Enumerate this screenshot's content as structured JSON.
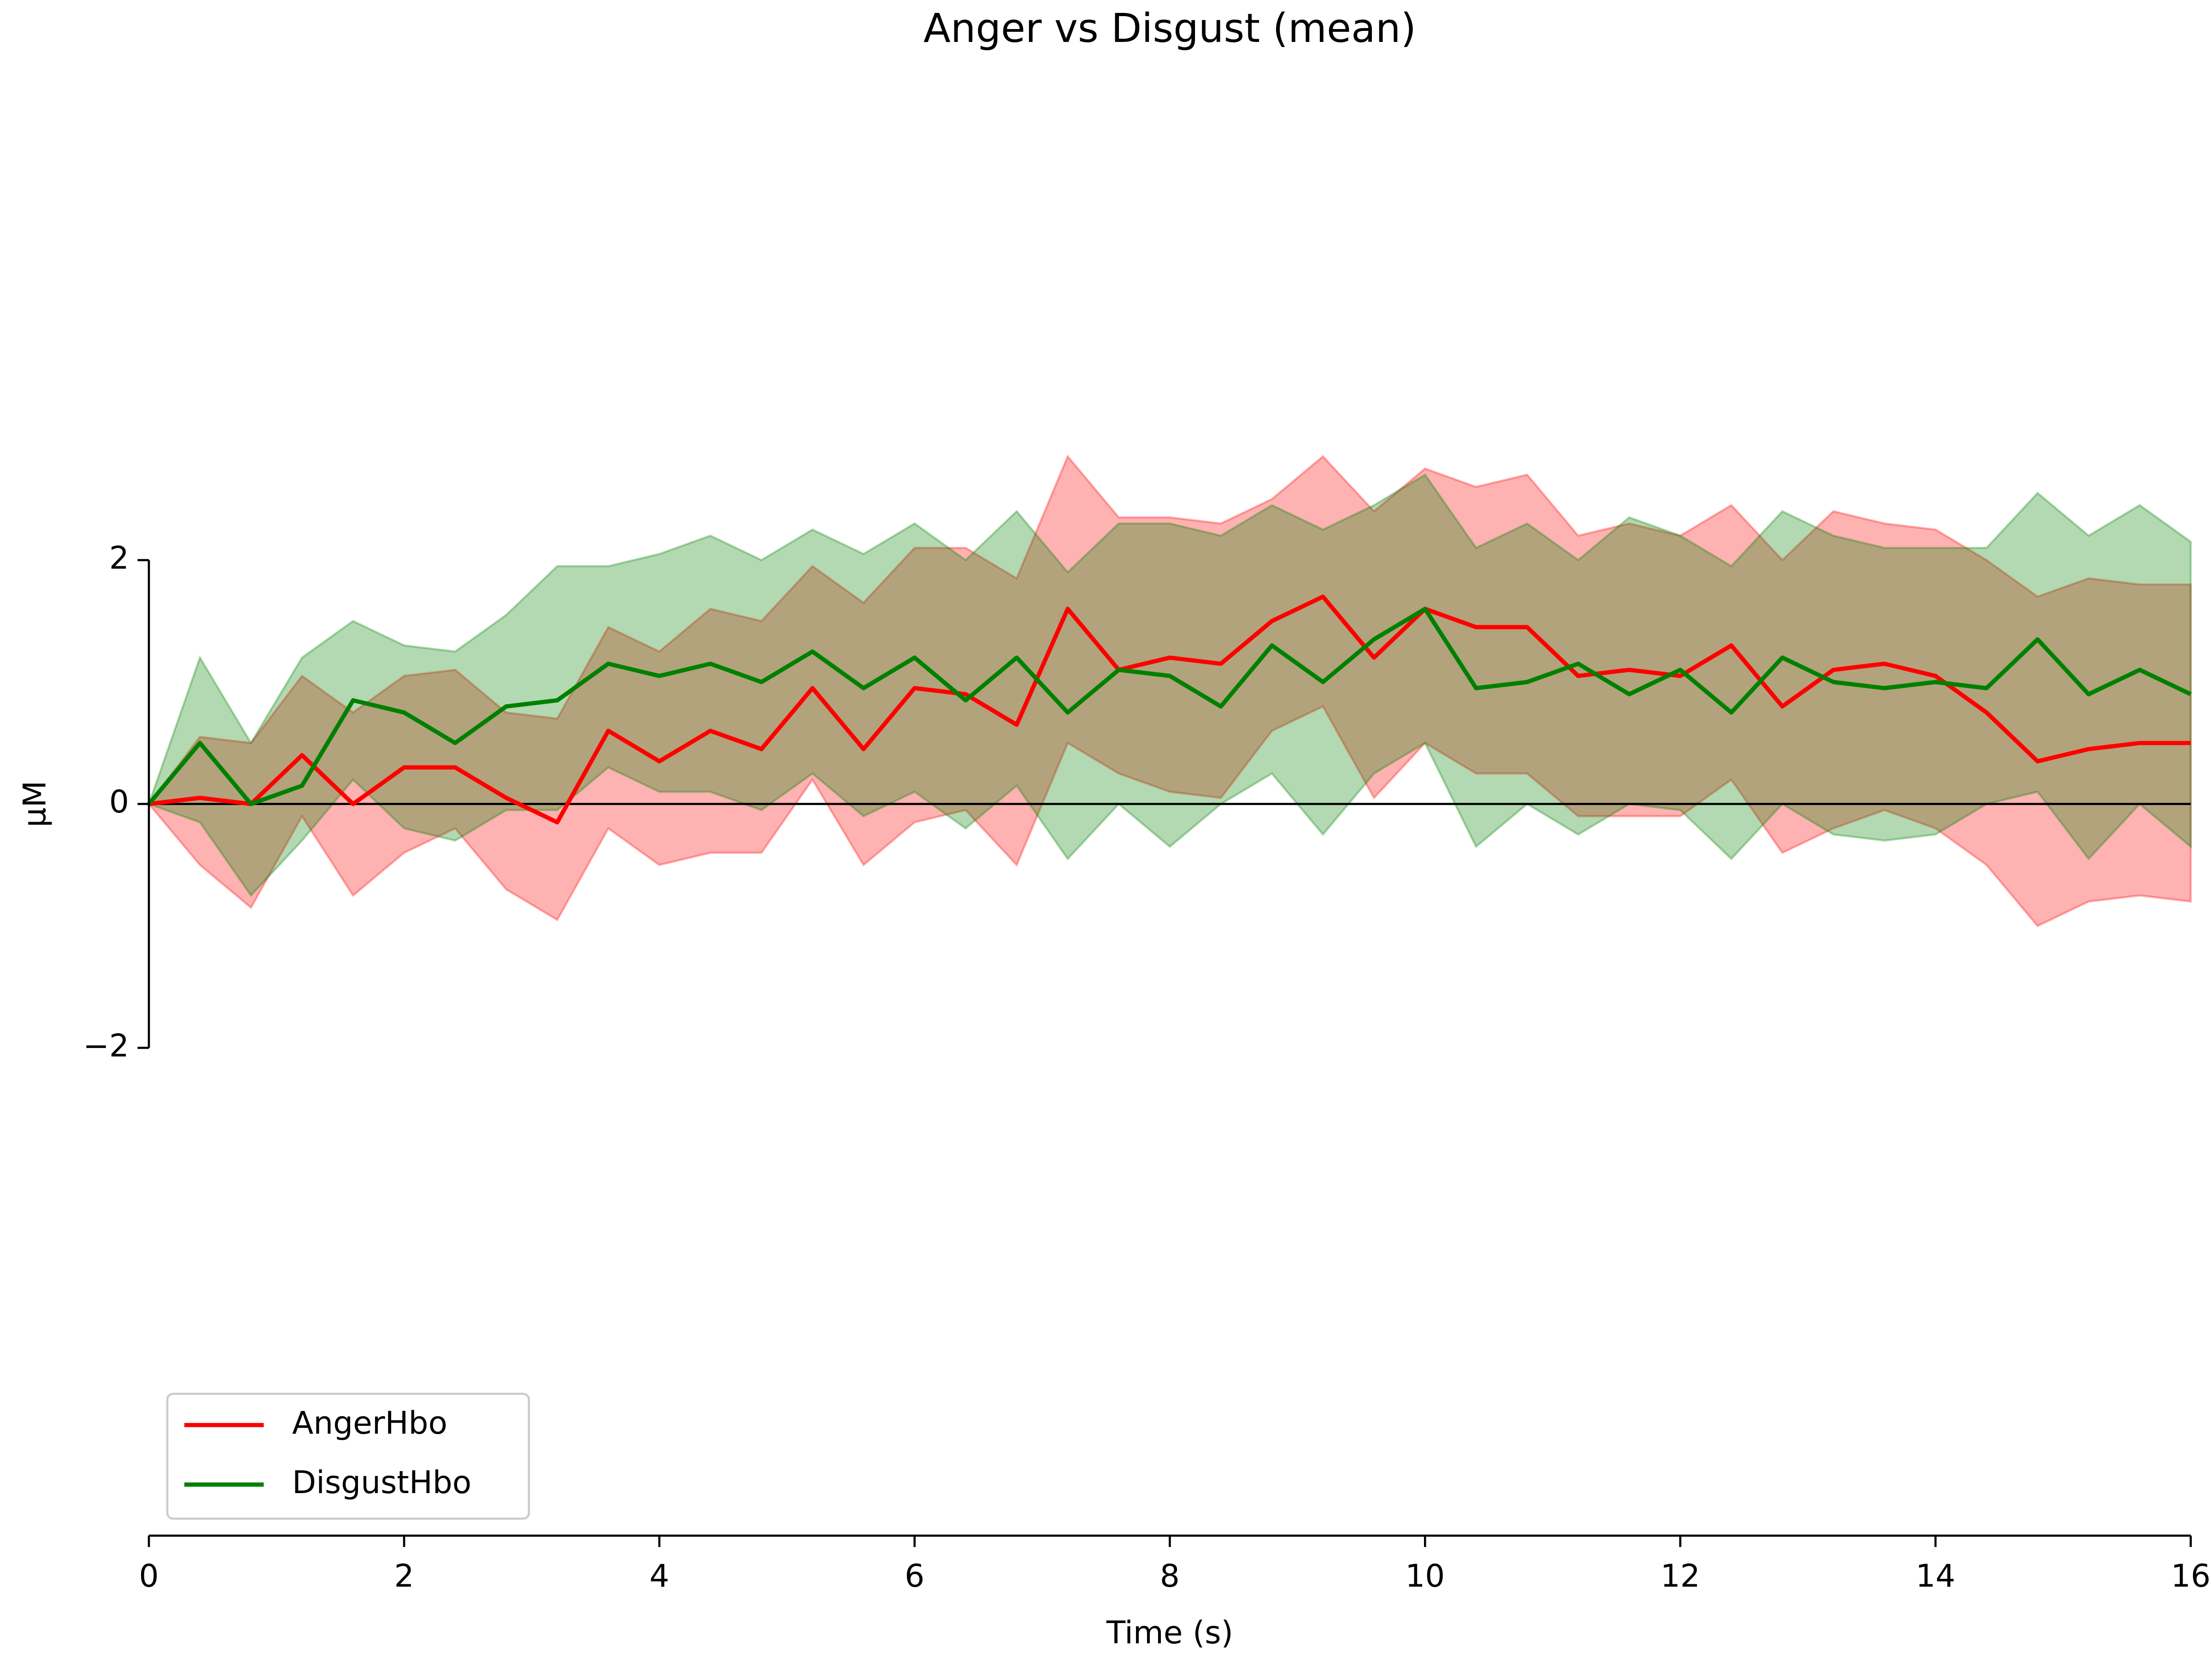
{
  "chart_data": {
    "type": "line",
    "title": "Anger vs Disgust (mean)",
    "x_label": "Time (s)",
    "y_label": "µM",
    "xlim": [
      0,
      16
    ],
    "ylim": [
      -6,
      6
    ],
    "xticks": [
      0,
      2,
      4,
      6,
      8,
      10,
      12,
      14,
      16
    ],
    "yticks": [
      {
        "value": -2,
        "label": "−2"
      },
      0,
      2
    ],
    "legend": "lower left",
    "band_opacity": 0.3,
    "x": [
      0,
      0.4,
      0.8,
      1.2,
      1.6,
      2.0,
      2.4,
      2.8,
      3.2,
      3.6,
      4.0,
      4.4,
      4.8,
      5.2,
      5.6,
      6.0,
      6.4,
      6.8,
      7.2,
      7.6,
      8.0,
      8.4,
      8.8,
      9.2,
      9.6,
      10.0,
      10.4,
      10.8,
      11.2,
      11.6,
      12.0,
      12.4,
      12.8,
      13.2,
      13.6,
      14.0,
      14.4,
      14.8,
      15.2,
      15.6,
      16.0
    ],
    "series": [
      {
        "name": "AngerHbo",
        "color": "#ff0000",
        "values": [
          0,
          0.05,
          0.0,
          0.4,
          0.0,
          0.3,
          0.3,
          0.05,
          -0.15,
          0.6,
          0.35,
          0.6,
          0.45,
          0.95,
          0.45,
          0.95,
          0.9,
          0.65,
          1.6,
          1.1,
          1.2,
          1.15,
          1.5,
          1.7,
          1.2,
          1.6,
          1.45,
          1.45,
          1.05,
          1.1,
          1.05,
          1.3,
          0.8,
          1.1,
          1.15,
          1.05,
          0.75,
          0.35,
          0.45,
          0.5,
          0.5
        ],
        "lower": [
          0,
          -0.5,
          -0.85,
          -0.1,
          -0.75,
          -0.4,
          -0.2,
          -0.7,
          -0.95,
          -0.2,
          -0.5,
          -0.4,
          -0.4,
          0.2,
          -0.5,
          -0.15,
          -0.05,
          -0.5,
          0.5,
          0.25,
          0.1,
          0.05,
          0.6,
          0.8,
          0.05,
          0.5,
          0.25,
          0.25,
          -0.1,
          -0.1,
          -0.1,
          0.2,
          -0.4,
          -0.2,
          -0.05,
          -0.2,
          -0.5,
          -1.0,
          -0.8,
          -0.75,
          -0.8
        ],
        "upper": [
          0,
          0.55,
          0.5,
          1.05,
          0.75,
          1.05,
          1.1,
          0.75,
          0.7,
          1.45,
          1.25,
          1.6,
          1.5,
          1.95,
          1.65,
          2.1,
          2.1,
          1.85,
          2.85,
          2.35,
          2.35,
          2.3,
          2.5,
          2.85,
          2.4,
          2.75,
          2.6,
          2.7,
          2.2,
          2.3,
          2.2,
          2.45,
          2.0,
          2.4,
          2.3,
          2.25,
          2.0,
          1.7,
          1.85,
          1.8,
          1.8
        ]
      },
      {
        "name": "DisgustHbo",
        "color": "#008000",
        "values": [
          0,
          0.5,
          0.0,
          0.15,
          0.85,
          0.75,
          0.5,
          0.8,
          0.85,
          1.15,
          1.05,
          1.15,
          1.0,
          1.25,
          0.95,
          1.2,
          0.85,
          1.2,
          0.75,
          1.1,
          1.05,
          0.8,
          1.3,
          1.0,
          1.35,
          1.6,
          0.95,
          1.0,
          1.15,
          0.9,
          1.1,
          0.75,
          1.2,
          1.0,
          0.95,
          1.0,
          0.95,
          1.35,
          0.9,
          1.1,
          0.9
        ],
        "lower": [
          0,
          -0.15,
          -0.75,
          -0.3,
          0.2,
          -0.2,
          -0.3,
          -0.05,
          -0.05,
          0.3,
          0.1,
          0.1,
          -0.05,
          0.25,
          -0.1,
          0.1,
          -0.2,
          0.15,
          -0.45,
          0.0,
          -0.35,
          0.0,
          0.25,
          -0.25,
          0.25,
          0.5,
          -0.35,
          0.0,
          -0.25,
          0.0,
          -0.05,
          -0.45,
          0.0,
          -0.25,
          -0.3,
          -0.25,
          0.0,
          0.1,
          -0.45,
          0.0,
          -0.35
        ],
        "upper": [
          0,
          1.2,
          0.5,
          1.2,
          1.5,
          1.3,
          1.25,
          1.55,
          1.95,
          1.95,
          2.05,
          2.2,
          2.0,
          2.25,
          2.05,
          2.3,
          2.0,
          2.4,
          1.9,
          2.3,
          2.3,
          2.2,
          2.45,
          2.25,
          2.45,
          2.7,
          2.1,
          2.3,
          2.0,
          2.35,
          2.2,
          1.95,
          2.4,
          2.2,
          2.1,
          2.1,
          2.1,
          2.55,
          2.2,
          2.45,
          2.15
        ]
      }
    ]
  }
}
